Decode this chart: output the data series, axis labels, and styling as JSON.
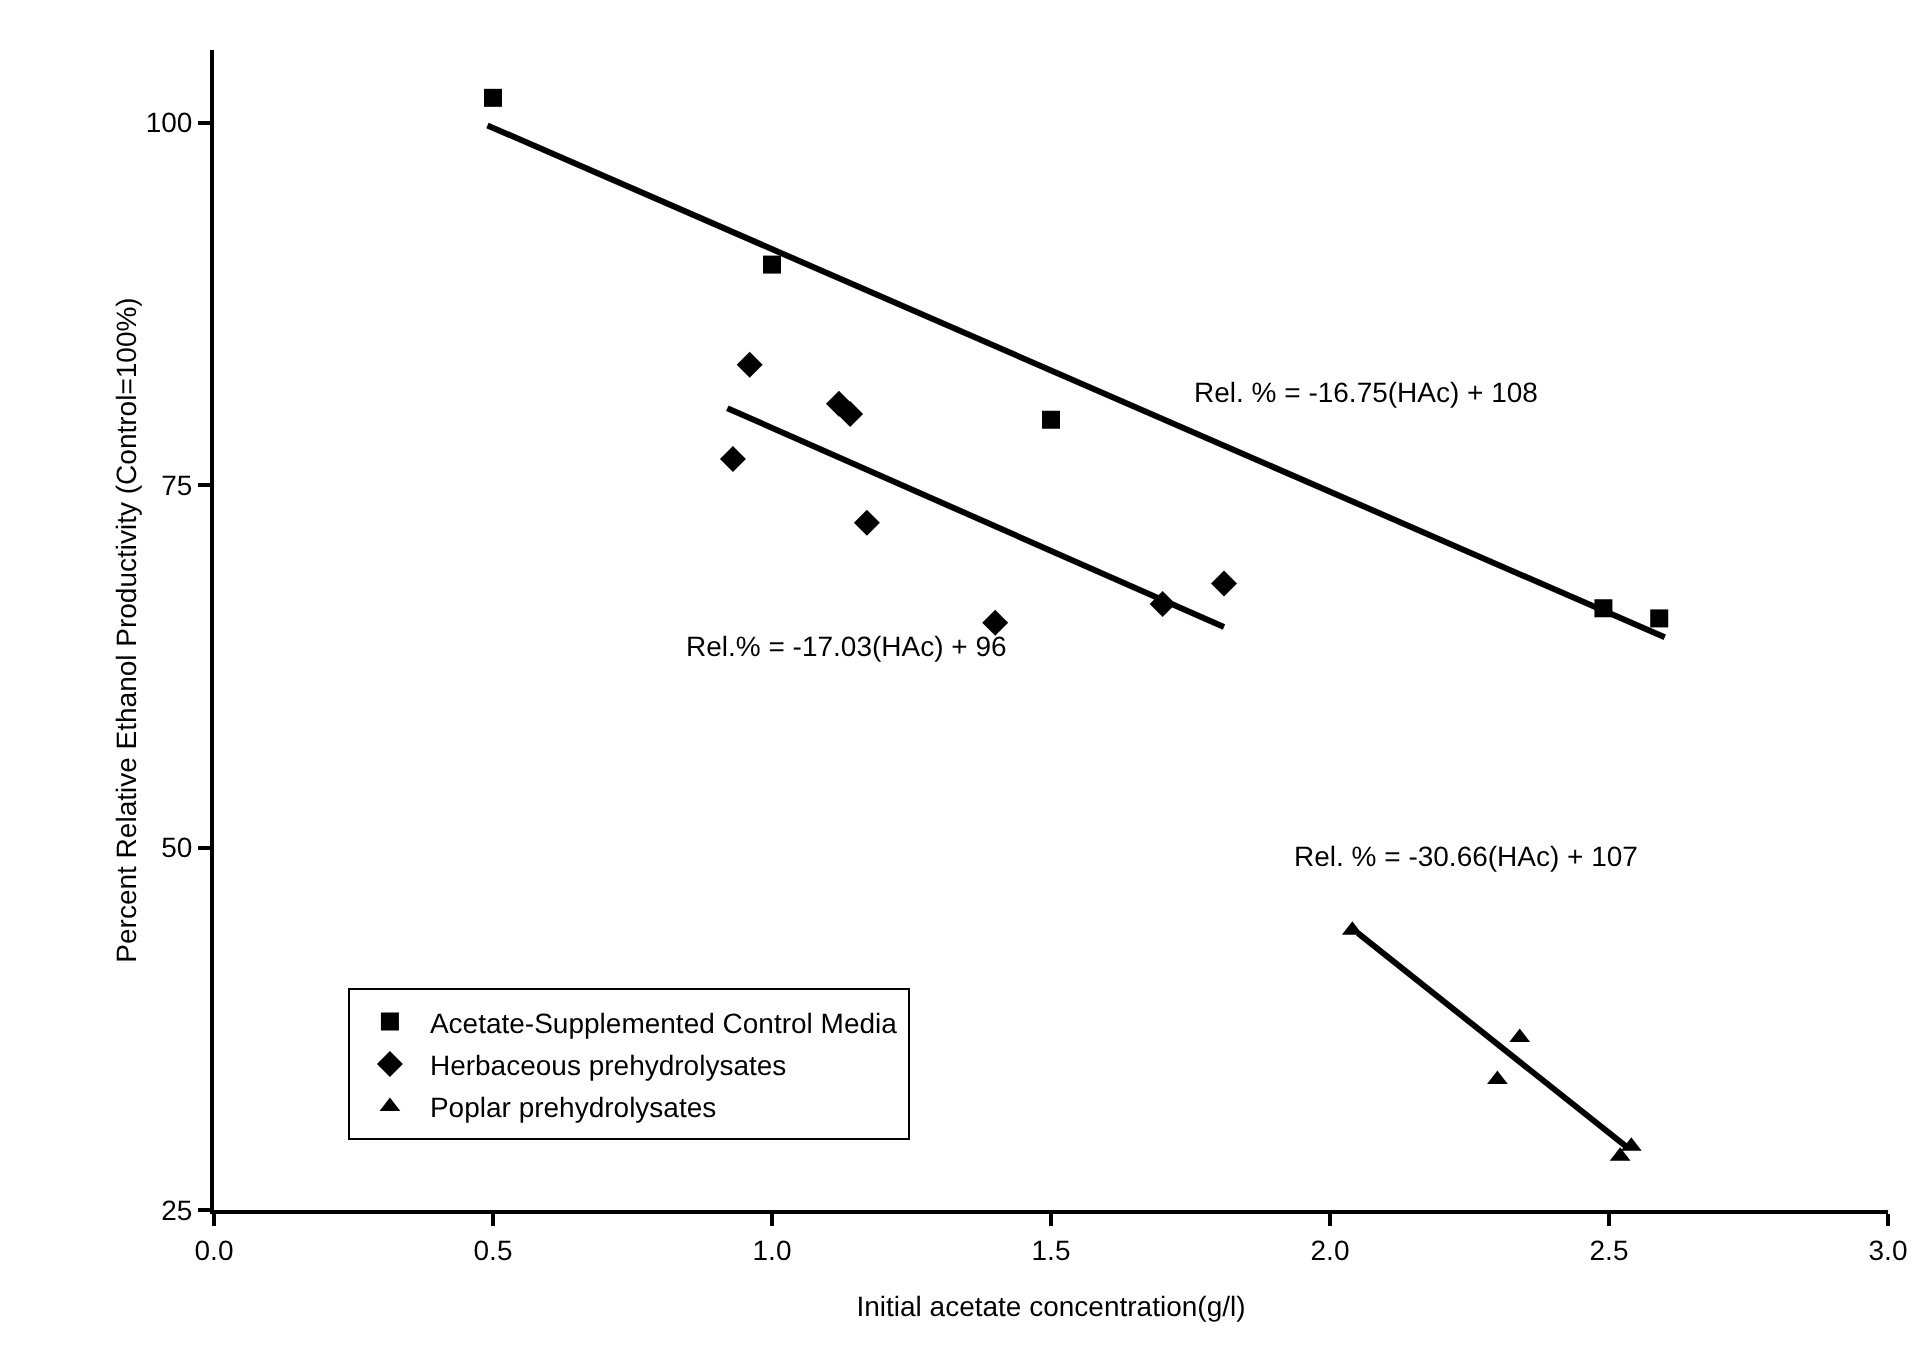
{
  "chart_data": {
    "type": "scatter",
    "xlabel": "Initial acetate concentration(g/l)",
    "ylabel": "Percent Relative Ethanol Productivity (Control=100%)",
    "xlim": [
      0,
      3
    ],
    "xticks": [
      {
        "value": 0,
        "label": "0.0"
      },
      {
        "value": 0.5,
        "label": "0.5"
      },
      {
        "value": 1,
        "label": "1.0"
      },
      {
        "value": 1.5,
        "label": "1.5"
      },
      {
        "value": 2,
        "label": "2.0"
      },
      {
        "value": 2.5,
        "label": "2.5"
      },
      {
        "value": 3,
        "label": "3.0"
      }
    ],
    "ylim": [
      25,
      105
    ],
    "yticks": [
      25,
      50,
      75,
      100
    ],
    "grid": false,
    "legend": "bottom left",
    "series": [
      {
        "name": "Acetate-Supplemented Control Media",
        "color": "#000000",
        "marker": "square",
        "x": [
          0.5,
          1.0,
          1.5,
          2.49,
          2.59
        ],
        "values": [
          101.7,
          90.2,
          79.5,
          66.5,
          65.8
        ]
      },
      {
        "name": "Herbaceous prehydrolysates",
        "color": "#000000",
        "marker": "diamond",
        "x": [
          0.96,
          1.12,
          1.14,
          0.93,
          1.17,
          1.4,
          1.7,
          1.81
        ],
        "values": [
          83.3,
          80.6,
          79.9,
          76.8,
          72.4,
          65.5,
          66.8,
          68.2
        ]
      },
      {
        "name": "Poplar prehydrolysates",
        "color": "#000000",
        "marker": "triangle",
        "x": [
          2.04,
          2.34,
          2.3,
          2.52,
          2.54
        ],
        "values": [
          44.3,
          36.9,
          34.0,
          28.7,
          29.4
        ]
      },
      {
        "type": "line",
        "color": "#000000",
        "x": [
          0.49,
          2.6
        ],
        "values": [
          99.8,
          64.5
        ]
      },
      {
        "type": "line",
        "color": "#000000",
        "x": [
          0.92,
          1.81
        ],
        "values": [
          80.3,
          65.2
        ]
      },
      {
        "type": "line",
        "color": "#000000",
        "x": [
          2.05,
          2.53
        ],
        "values": [
          44.1,
          29.4
        ]
      }
    ],
    "annotations": [
      "Rel. % = -16.75(HAc) + 108",
      "Rel.% = -17.03(HAc) + 96",
      "Rel. % = -30.66(HAc) + 107"
    ]
  }
}
